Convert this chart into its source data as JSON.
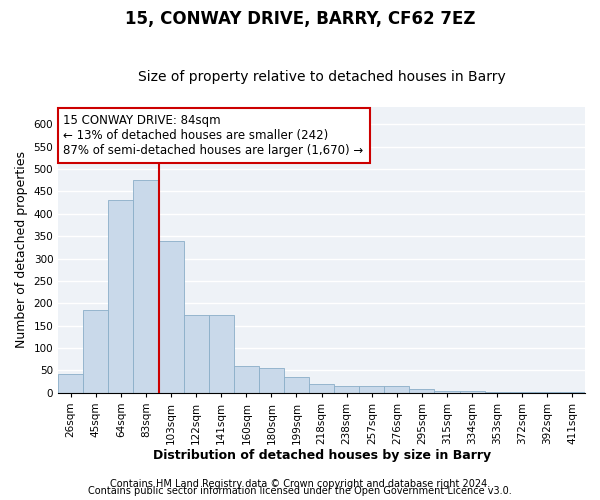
{
  "title": "15, CONWAY DRIVE, BARRY, CF62 7EZ",
  "subtitle": "Size of property relative to detached houses in Barry",
  "xlabel": "Distribution of detached houses by size in Barry",
  "ylabel": "Number of detached properties",
  "bar_color": "#c9d9ea",
  "bar_edge_color": "#8aaec8",
  "marker_line_color": "#cc0000",
  "annotation_text": "15 CONWAY DRIVE: 84sqm\n← 13% of detached houses are smaller (242)\n87% of semi-detached houses are larger (1,670) →",
  "annotation_box_color": "#ffffff",
  "annotation_box_edge": "#cc0000",
  "categories": [
    "26sqm",
    "45sqm",
    "64sqm",
    "83sqm",
    "103sqm",
    "122sqm",
    "141sqm",
    "160sqm",
    "180sqm",
    "199sqm",
    "218sqm",
    "238sqm",
    "257sqm",
    "276sqm",
    "295sqm",
    "315sqm",
    "334sqm",
    "353sqm",
    "372sqm",
    "392sqm",
    "411sqm"
  ],
  "values": [
    42,
    185,
    430,
    475,
    340,
    175,
    175,
    60,
    55,
    35,
    20,
    15,
    15,
    15,
    8,
    4,
    3,
    2,
    2,
    2,
    2
  ],
  "ylim": [
    0,
    640
  ],
  "yticks": [
    0,
    50,
    100,
    150,
    200,
    250,
    300,
    350,
    400,
    450,
    500,
    550,
    600
  ],
  "background_color": "#eef2f7",
  "grid_color": "#ffffff",
  "footer1": "Contains HM Land Registry data © Crown copyright and database right 2024.",
  "footer2": "Contains public sector information licensed under the Open Government Licence v3.0.",
  "title_fontsize": 12,
  "subtitle_fontsize": 10,
  "axis_label_fontsize": 9,
  "tick_fontsize": 7.5,
  "annotation_fontsize": 8.5,
  "footer_fontsize": 7
}
